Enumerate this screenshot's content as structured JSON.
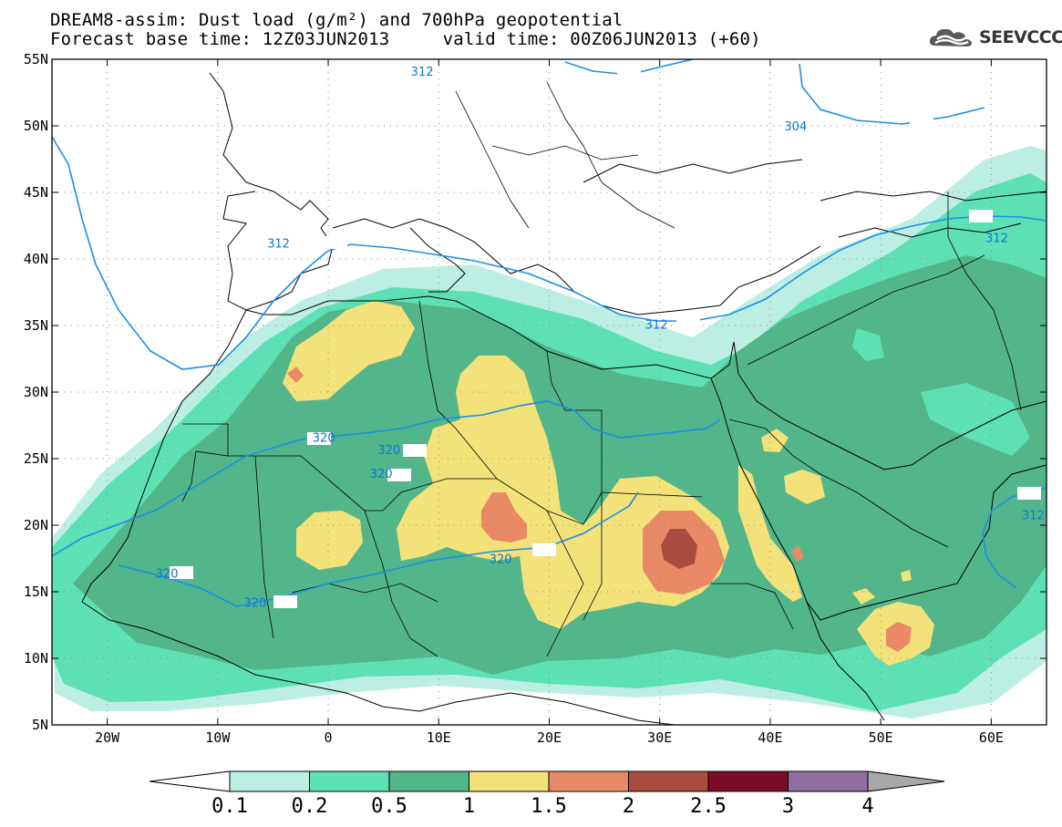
{
  "title": {
    "line1": "DREAM8-assim: Dust load (g/m²) and 700hPa geopotential",
    "line2": "Forecast base time: 12Z03JUN2013     valid time: 00Z06JUN2013 (+60)"
  },
  "logo": {
    "text": "SEEVCCC",
    "icon": "cloud-icon"
  },
  "chart_data": {
    "type": "map",
    "projection": "lat-lon",
    "lon_range": [
      -25,
      65
    ],
    "lat_range": [
      5,
      55
    ],
    "lon_ticks": [
      {
        "value": -20,
        "label": "20W"
      },
      {
        "value": -10,
        "label": "10W"
      },
      {
        "value": 0,
        "label": "0"
      },
      {
        "value": 10,
        "label": "10E"
      },
      {
        "value": 20,
        "label": "20E"
      },
      {
        "value": 30,
        "label": "30E"
      },
      {
        "value": 40,
        "label": "40E"
      },
      {
        "value": 50,
        "label": "50E"
      },
      {
        "value": 60,
        "label": "60E"
      }
    ],
    "lat_ticks": [
      {
        "value": 55,
        "label": "55N"
      },
      {
        "value": 50,
        "label": "50N"
      },
      {
        "value": 45,
        "label": "45N"
      },
      {
        "value": 40,
        "label": "40N"
      },
      {
        "value": 35,
        "label": "35N"
      },
      {
        "value": 30,
        "label": "30N"
      },
      {
        "value": 25,
        "label": "25N"
      },
      {
        "value": 20,
        "label": "20N"
      },
      {
        "value": 15,
        "label": "15N"
      },
      {
        "value": 10,
        "label": "10N"
      },
      {
        "value": 5,
        "label": "5N"
      }
    ],
    "grid": "dotted",
    "contour_labels": [
      {
        "text": "312",
        "lon": 8.5,
        "lat": 54.1
      },
      {
        "text": "304",
        "lon": 42.3,
        "lat": 50.0
      },
      {
        "text": "312",
        "lon": 60.5,
        "lat": 41.6
      },
      {
        "text": "312",
        "lon": -4.5,
        "lat": 41.2
      },
      {
        "text": "312",
        "lon": 29.7,
        "lat": 35.1
      },
      {
        "text": "312",
        "lon": 63.8,
        "lat": 20.8
      },
      {
        "text": "320",
        "lon": -0.4,
        "lat": 26.6
      },
      {
        "text": "320",
        "lon": 5.5,
        "lat": 25.7
      },
      {
        "text": "320",
        "lon": 4.8,
        "lat": 23.9
      },
      {
        "text": "320",
        "lon": 15.6,
        "lat": 17.5
      },
      {
        "text": "320",
        "lon": -14.6,
        "lat": 16.4
      },
      {
        "text": "320",
        "lon": -6.6,
        "lat": 14.2
      }
    ],
    "colorbar": {
      "levels": [
        0.1,
        0.2,
        0.5,
        1,
        1.5,
        2,
        2.5,
        3,
        4
      ],
      "labels": [
        "0.1",
        "0.2",
        "0.5",
        "1",
        "1.5",
        "2",
        "2.5",
        "3",
        "4"
      ],
      "colors": [
        "#ffffff",
        "#bdeee4",
        "#5ee0b5",
        "#52b68a",
        "#f3e27a",
        "#e98a66",
        "#a94c40",
        "#7a0c2a",
        "#8f6fa1",
        "#a8a8a8"
      ]
    }
  }
}
